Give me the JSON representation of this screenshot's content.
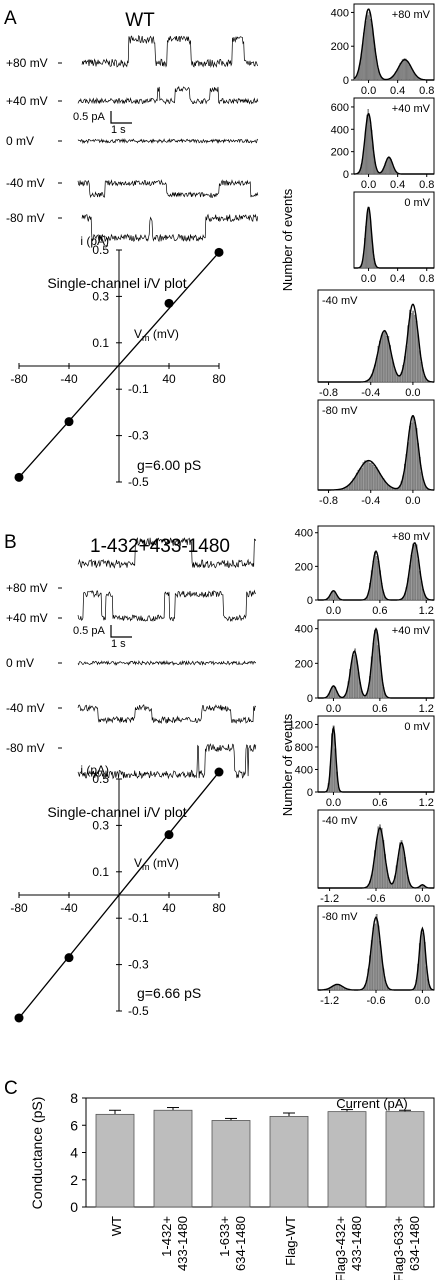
{
  "panels": {
    "A": {
      "letter": "A",
      "title": "WT",
      "traces": [
        {
          "label": "+80 mV",
          "closed": 0.0,
          "open": 0.53,
          "noise": 0.09,
          "openFraction": 0.35
        },
        {
          "label": "+40 mV",
          "closed": 0.0,
          "open": 0.27,
          "noise": 0.06,
          "openFraction": 0.3
        },
        {
          "label": "0 mV",
          "closed": 0.0,
          "open": 0.0,
          "noise": 0.04,
          "openFraction": 0.0
        },
        {
          "label": "-40 mV",
          "closed": 0.0,
          "open": -0.27,
          "noise": 0.06,
          "openFraction": 0.45
        },
        {
          "label": "-80 mV",
          "closed": 0.0,
          "open": -0.45,
          "noise": 0.08,
          "openFraction": 0.35
        }
      ],
      "scale_bar": {
        "current_label": "0.5 pA",
        "time_label": "1 s"
      },
      "iv": {
        "title": "Single-channel i/V plot",
        "ylabel": "i (pA)",
        "xlabel_main": "V",
        "xlabel_sub": "m",
        "xlabel_unit": " (mV)",
        "x_ticks": [
          "-80",
          "-40",
          "40",
          "80"
        ],
        "x_tick_values": [
          -80,
          -40,
          40,
          80
        ],
        "y_ticks_pos": [
          "0.5",
          "0.3",
          "0.1"
        ],
        "y_tick_pos_values": [
          0.5,
          0.3,
          0.1
        ],
        "y_ticks_neg": [
          "-0.1",
          "-0.3",
          "-0.5"
        ],
        "y_tick_neg_values": [
          -0.1,
          -0.3,
          -0.5
        ],
        "conductance": "g=6.00 pS"
      }
    },
    "B": {
      "letter": "B",
      "title": "1-432+433-1480",
      "traces": [
        {
          "label": "+80 mV",
          "closed": 0.55,
          "open": 1.05,
          "noise": 0.09,
          "openFraction": 0.5
        },
        {
          "label": "+40 mV",
          "closed": 0.0,
          "open": 0.55,
          "noise": 0.07,
          "openFraction": 0.5
        },
        {
          "label": "0 mV",
          "closed": 0.0,
          "open": 0.0,
          "noise": 0.04,
          "openFraction": 0.0
        },
        {
          "label": "-40 mV",
          "closed": 0.0,
          "open": -0.27,
          "noise": 0.07,
          "openFraction": 0.5
        },
        {
          "label": "-80 mV",
          "closed": -0.6,
          "open": 0.0,
          "noise": 0.09,
          "openFraction": 0.3
        }
      ],
      "scale_bar": {
        "current_label": "0.5 pA",
        "time_label": "1 s"
      },
      "iv": {
        "title": "Single-channel i/V plot",
        "ylabel": "i (pA)",
        "xlabel_main": "V",
        "xlabel_sub": "m",
        "xlabel_unit": " (mV)",
        "x_ticks": [
          "-80",
          "-40",
          "40",
          "80"
        ],
        "x_tick_values": [
          -80,
          -40,
          40,
          80
        ],
        "y_ticks_pos": [
          "0.5",
          "0.3",
          "0.1"
        ],
        "y_tick_pos_values": [
          0.5,
          0.3,
          0.1
        ],
        "y_ticks_neg": [
          "-0.1",
          "-0.3",
          "-0.5"
        ],
        "y_tick_neg_values": [
          -0.1,
          -0.3,
          -0.5
        ],
        "conductance": "g=6.66 pS"
      }
    },
    "C": {
      "letter": "C",
      "ylabel": "Conductance (pS)"
    }
  },
  "histograms": {
    "ylabel": "Number of events",
    "xlabel": "Current (pA)"
  },
  "chart_data": [
    {
      "type": "line",
      "panel": "A",
      "xlabel": "Vm (mV)",
      "ylabel": "i (pA)",
      "xlim": [
        -80,
        80
      ],
      "ylim": [
        -0.5,
        0.5
      ],
      "points": [
        [
          -80,
          -0.48
        ],
        [
          -40,
          -0.24
        ],
        [
          40,
          0.27
        ],
        [
          80,
          0.49
        ]
      ],
      "fit_line": [
        [
          -80,
          -0.48
        ],
        [
          80,
          0.49
        ]
      ],
      "annotation": "g=6.00 pS"
    },
    {
      "type": "line",
      "panel": "B",
      "xlabel": "Vm (mV)",
      "ylabel": "i (pA)",
      "xlim": [
        -80,
        80
      ],
      "ylim": [
        -0.5,
        0.5
      ],
      "points": [
        [
          -80,
          -0.53
        ],
        [
          -40,
          -0.27
        ],
        [
          40,
          0.26
        ],
        [
          80,
          0.53
        ]
      ],
      "fit_line": [
        [
          -80,
          -0.53
        ],
        [
          80,
          0.53
        ]
      ],
      "annotation": "g=6.66 pS"
    },
    {
      "type": "bar",
      "panel": "C",
      "ylabel": "Conductance (pS)",
      "ylim": [
        0,
        8
      ],
      "yticks": [
        "0",
        "2",
        "4",
        "6",
        "8"
      ],
      "ytick_values": [
        0,
        2,
        4,
        6,
        8
      ],
      "categories": [
        "WT",
        "1-432+\n433-1480",
        "1-633+\n634-1480",
        "Flag-WT",
        "Flag3-432+\n433-1480",
        "Flag3-633+\n634-1480"
      ],
      "values": [
        6.8,
        7.1,
        6.35,
        6.65,
        7.0,
        7.0
      ],
      "errors": [
        0.3,
        0.2,
        0.15,
        0.25,
        0.15,
        0.1
      ]
    },
    {
      "type": "bar",
      "panel": "A",
      "subtype": "histogram",
      "ylabel": "Number of events",
      "plots": [
        {
          "label": "+80 mV",
          "label_pos": "right",
          "xlim": [
            -0.2,
            0.9
          ],
          "xticks": [
            "0.0",
            "0.4",
            "0.8"
          ],
          "xtick_values": [
            0.0,
            0.4,
            0.8
          ],
          "ylim": [
            0,
            450
          ],
          "yticks": [
            "0",
            "200",
            "400"
          ],
          "ytick_values": [
            0,
            200,
            400
          ],
          "peaks": [
            {
              "mu": 0.0,
              "sd": 0.07,
              "amp": 420
            },
            {
              "mu": 0.5,
              "sd": 0.09,
              "amp": 120
            }
          ]
        },
        {
          "label": "+40 mV",
          "label_pos": "right",
          "xlim": [
            -0.2,
            0.9
          ],
          "xticks": [
            "0.0",
            "0.4",
            "0.8"
          ],
          "xtick_values": [
            0.0,
            0.4,
            0.8
          ],
          "ylim": [
            0,
            680
          ],
          "yticks": [
            "0",
            "200",
            "400",
            "600"
          ],
          "ytick_values": [
            0,
            200,
            400,
            600
          ],
          "peaks": [
            {
              "mu": 0.0,
              "sd": 0.05,
              "amp": 540
            },
            {
              "mu": 0.28,
              "sd": 0.05,
              "amp": 150
            }
          ]
        },
        {
          "label": "0 mV",
          "label_pos": "right",
          "xlim": [
            -0.2,
            0.9
          ],
          "xticks": [
            "0.0",
            "0.4",
            "0.8"
          ],
          "xtick_values": [
            0.0,
            0.4,
            0.8
          ],
          "ylim": [
            0,
            1100
          ],
          "yticks": [],
          "ytick_values": [],
          "peaks": [
            {
              "mu": 0.0,
              "sd": 0.04,
              "amp": 880
            }
          ]
        },
        {
          "label": "-40 mV",
          "label_pos": "left",
          "xlim": [
            -0.9,
            0.2
          ],
          "xticks": [
            "-0.8",
            "-0.4",
            "0.0"
          ],
          "xtick_values": [
            -0.8,
            -0.4,
            0.0
          ],
          "ylim": [
            0,
            520
          ],
          "yticks": [],
          "ytick_values": [],
          "peaks": [
            {
              "mu": -0.27,
              "sd": 0.06,
              "amp": 290
            },
            {
              "mu": 0.0,
              "sd": 0.05,
              "amp": 440
            }
          ]
        },
        {
          "label": "-80 mV",
          "label_pos": "left",
          "xlim": [
            -0.9,
            0.2
          ],
          "xticks": [
            "-0.8",
            "-0.4",
            "0.0"
          ],
          "xtick_values": [
            -0.8,
            -0.4,
            0.0
          ],
          "ylim": [
            0,
            520
          ],
          "yticks": [],
          "ytick_values": [],
          "peaks": [
            {
              "mu": -0.42,
              "sd": 0.1,
              "amp": 170
            },
            {
              "mu": 0.0,
              "sd": 0.05,
              "amp": 430
            }
          ]
        }
      ]
    },
    {
      "type": "bar",
      "panel": "B",
      "subtype": "histogram",
      "ylabel": "Number of events",
      "xlabel": "Current (pA)",
      "plots": [
        {
          "label": "+80 mV",
          "label_pos": "right",
          "xlim": [
            -0.2,
            1.3
          ],
          "xticks": [
            "0.0",
            "0.6",
            "1.2"
          ],
          "xtick_values": [
            0.0,
            0.6,
            1.2
          ],
          "ylim": [
            0,
            440
          ],
          "yticks": [
            "0",
            "200",
            "400"
          ],
          "ytick_values": [
            0,
            200,
            400
          ],
          "peaks": [
            {
              "mu": 0.0,
              "sd": 0.04,
              "amp": 55
            },
            {
              "mu": 0.55,
              "sd": 0.05,
              "amp": 290
            },
            {
              "mu": 1.05,
              "sd": 0.06,
              "amp": 340
            }
          ]
        },
        {
          "label": "+40 mV",
          "label_pos": "right",
          "xlim": [
            -0.2,
            1.3
          ],
          "xticks": [
            "0.0",
            "0.6",
            "1.2"
          ],
          "xtick_values": [
            0.0,
            0.6,
            1.2
          ],
          "ylim": [
            0,
            450
          ],
          "yticks": [
            "0",
            "200",
            "400"
          ],
          "ytick_values": [
            0,
            200,
            400
          ],
          "peaks": [
            {
              "mu": 0.0,
              "sd": 0.04,
              "amp": 70
            },
            {
              "mu": 0.27,
              "sd": 0.05,
              "amp": 270
            },
            {
              "mu": 0.55,
              "sd": 0.05,
              "amp": 400
            }
          ]
        },
        {
          "label": "0 mV",
          "label_pos": "right",
          "xlim": [
            -0.2,
            1.3
          ],
          "xticks": [
            "0.0",
            "0.6",
            "1.2"
          ],
          "xtick_values": [
            0.0,
            0.6,
            1.2
          ],
          "ylim": [
            0,
            1350
          ],
          "yticks": [
            "0",
            "400",
            "800",
            "1200"
          ],
          "ytick_values": [
            0,
            400,
            800,
            1200
          ],
          "peaks": [
            {
              "mu": 0.0,
              "sd": 0.03,
              "amp": 1150
            }
          ]
        },
        {
          "label": "-40 mV",
          "label_pos": "left",
          "xlim": [
            -1.35,
            0.15
          ],
          "xticks": [
            "-1.2",
            "-0.6",
            "0.0"
          ],
          "xtick_values": [
            -1.2,
            -0.6,
            0.0
          ],
          "ylim": [
            0,
            480
          ],
          "yticks": [],
          "ytick_values": [],
          "peaks": [
            {
              "mu": -0.55,
              "sd": 0.06,
              "amp": 370
            },
            {
              "mu": -0.27,
              "sd": 0.05,
              "amp": 280
            },
            {
              "mu": 0.0,
              "sd": 0.03,
              "amp": 20
            }
          ]
        },
        {
          "label": "-80 mV",
          "label_pos": "left",
          "xlim": [
            -1.35,
            0.15
          ],
          "xticks": [
            "-1.2",
            "-0.6",
            "0.0"
          ],
          "xtick_values": [
            -1.2,
            -0.6,
            0.0
          ],
          "ylim": [
            0,
            300
          ],
          "yticks": [],
          "ytick_values": [],
          "peaks": [
            {
              "mu": -1.1,
              "sd": 0.07,
              "amp": 20
            },
            {
              "mu": -0.6,
              "sd": 0.06,
              "amp": 260
            },
            {
              "mu": 0.0,
              "sd": 0.04,
              "amp": 220
            }
          ]
        }
      ]
    }
  ]
}
